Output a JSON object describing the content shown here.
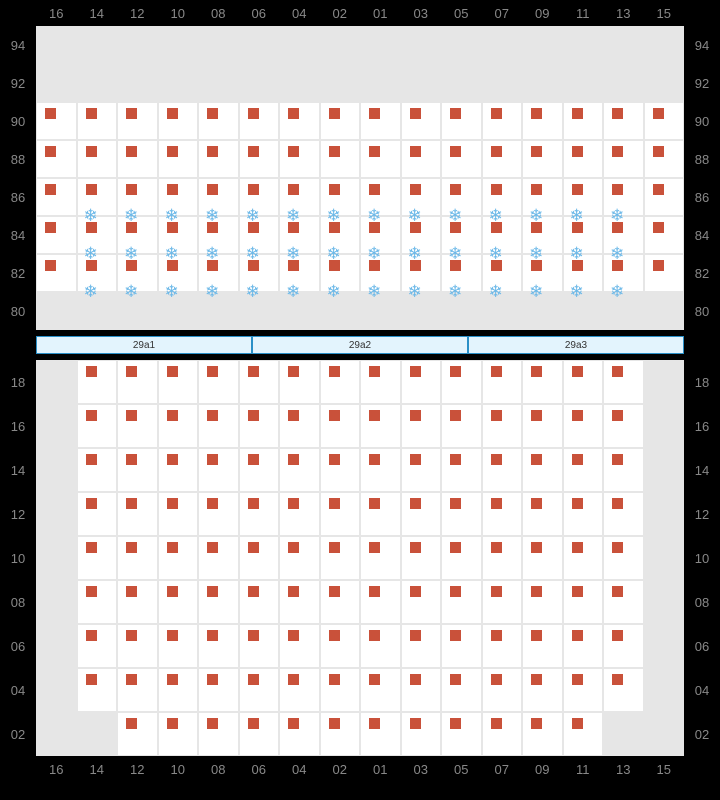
{
  "columns": [
    "16",
    "14",
    "12",
    "10",
    "08",
    "06",
    "04",
    "02",
    "01",
    "03",
    "05",
    "07",
    "09",
    "11",
    "13",
    "15"
  ],
  "seat_color": "#c9513a",
  "ice_color": "#6bb8e8",
  "bg_empty": "#e6e6e6",
  "bg_seat": "#ffffff",
  "grid_border": "#e6e6e6",
  "exit_bg": "#e3f4fd",
  "exit_border": "#2a8fc7",
  "upper": {
    "rows": [
      {
        "label": "94",
        "cells": [
          "e",
          "e",
          "e",
          "e",
          "e",
          "e",
          "e",
          "e",
          "e",
          "e",
          "e",
          "e",
          "e",
          "e",
          "e",
          "e"
        ]
      },
      {
        "label": "92",
        "cells": [
          "e",
          "e",
          "e",
          "e",
          "e",
          "e",
          "e",
          "e",
          "e",
          "e",
          "e",
          "e",
          "e",
          "e",
          "e",
          "e"
        ]
      },
      {
        "label": "90",
        "cells": [
          "s",
          "s",
          "s",
          "s",
          "s",
          "s",
          "s",
          "s",
          "s",
          "s",
          "s",
          "s",
          "s",
          "s",
          "s",
          "s"
        ]
      },
      {
        "label": "88",
        "cells": [
          "s",
          "s",
          "s",
          "s",
          "s",
          "s",
          "s",
          "s",
          "s",
          "s",
          "s",
          "s",
          "s",
          "s",
          "s",
          "s"
        ]
      },
      {
        "label": "86",
        "cells": [
          "s",
          "si",
          "si",
          "si",
          "si",
          "si",
          "si",
          "si",
          "si",
          "si",
          "si",
          "si",
          "si",
          "si",
          "si",
          "s"
        ]
      },
      {
        "label": "84",
        "cells": [
          "s",
          "si",
          "si",
          "si",
          "si",
          "si",
          "si",
          "si",
          "si",
          "si",
          "si",
          "si",
          "si",
          "si",
          "si",
          "s"
        ]
      },
      {
        "label": "82",
        "cells": [
          "s",
          "si",
          "si",
          "si",
          "si",
          "si",
          "si",
          "si",
          "si",
          "si",
          "si",
          "si",
          "si",
          "si",
          "si",
          "s"
        ]
      },
      {
        "label": "80",
        "cells": [
          "e",
          "e",
          "e",
          "e",
          "e",
          "e",
          "e",
          "e",
          "e",
          "e",
          "e",
          "e",
          "e",
          "e",
          "e",
          "e"
        ]
      }
    ]
  },
  "exits": [
    "29a1",
    "29a2",
    "29a3"
  ],
  "lower": {
    "rows": [
      {
        "label": "18",
        "cells": [
          "e",
          "s",
          "s",
          "s",
          "s",
          "s",
          "s",
          "s",
          "s",
          "s",
          "s",
          "s",
          "s",
          "s",
          "s",
          "e"
        ]
      },
      {
        "label": "16",
        "cells": [
          "e",
          "s",
          "s",
          "s",
          "s",
          "s",
          "s",
          "s",
          "s",
          "s",
          "s",
          "s",
          "s",
          "s",
          "s",
          "e"
        ]
      },
      {
        "label": "14",
        "cells": [
          "e",
          "s",
          "s",
          "s",
          "s",
          "s",
          "s",
          "s",
          "s",
          "s",
          "s",
          "s",
          "s",
          "s",
          "s",
          "e"
        ]
      },
      {
        "label": "12",
        "cells": [
          "e",
          "s",
          "s",
          "s",
          "s",
          "s",
          "s",
          "s",
          "s",
          "s",
          "s",
          "s",
          "s",
          "s",
          "s",
          "e"
        ]
      },
      {
        "label": "10",
        "cells": [
          "e",
          "s",
          "s",
          "s",
          "s",
          "s",
          "s",
          "s",
          "s",
          "s",
          "s",
          "s",
          "s",
          "s",
          "s",
          "e"
        ]
      },
      {
        "label": "08",
        "cells": [
          "e",
          "s",
          "s",
          "s",
          "s",
          "s",
          "s",
          "s",
          "s",
          "s",
          "s",
          "s",
          "s",
          "s",
          "s",
          "e"
        ]
      },
      {
        "label": "06",
        "cells": [
          "e",
          "s",
          "s",
          "s",
          "s",
          "s",
          "s",
          "s",
          "s",
          "s",
          "s",
          "s",
          "s",
          "s",
          "s",
          "e"
        ]
      },
      {
        "label": "04",
        "cells": [
          "e",
          "s",
          "s",
          "s",
          "s",
          "s",
          "s",
          "s",
          "s",
          "s",
          "s",
          "s",
          "s",
          "s",
          "s",
          "e"
        ]
      },
      {
        "label": "02",
        "cells": [
          "e",
          "e",
          "s",
          "s",
          "s",
          "s",
          "s",
          "s",
          "s",
          "s",
          "s",
          "s",
          "s",
          "s",
          "e",
          "e"
        ]
      }
    ]
  }
}
